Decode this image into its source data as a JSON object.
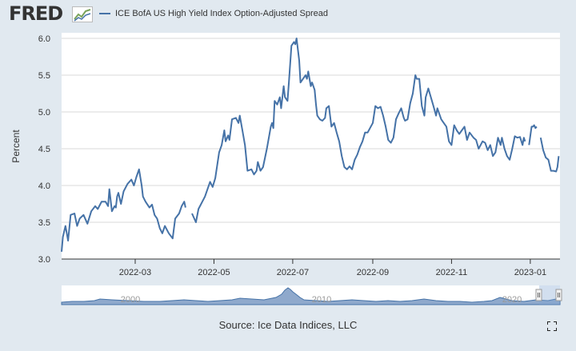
{
  "header": {
    "logo_text": "FRED",
    "logo_icon": "fred-chart-icon",
    "series_name": "ICE BofA US High Yield Index Option-Adjusted Spread"
  },
  "source": "Source: Ice Data Indices, LLC",
  "colors": {
    "background": "#e1e9f0",
    "line": "#4572a7",
    "grid": "#d8d8d8",
    "navigator_fill": "#8fa9cc"
  },
  "navigator": {
    "labels": [
      "2000",
      "2010",
      "2020"
    ]
  },
  "fullscreen_icon": "fullscreen-icon",
  "chart_data": {
    "type": "line",
    "title": "",
    "xlabel": "",
    "ylabel": "Percent",
    "ylim": [
      3.0,
      6.0
    ],
    "yticks": [
      "3.0",
      "3.5",
      "4.0",
      "4.5",
      "5.0",
      "5.5",
      "6.0"
    ],
    "xticks": [
      "2022-03",
      "2022-05",
      "2022-07",
      "2022-09",
      "2022-11",
      "2023-01"
    ],
    "grid": "horizontal",
    "legend": "top",
    "series": [
      {
        "name": "ICE BofA US High Yield Index Option-Adjusted Spread",
        "points": [
          [
            "2022-01-03",
            3.1
          ],
          [
            "2022-01-04",
            3.3
          ],
          [
            "2022-01-06",
            3.45
          ],
          [
            "2022-01-07",
            3.35
          ],
          [
            "2022-01-08",
            3.25
          ],
          [
            "2022-01-10",
            3.6
          ],
          [
            "2022-01-13",
            3.62
          ],
          [
            "2022-01-15",
            3.45
          ],
          [
            "2022-01-17",
            3.55
          ],
          [
            "2022-01-20",
            3.6
          ],
          [
            "2022-01-23",
            3.48
          ],
          [
            "2022-01-26",
            3.65
          ],
          [
            "2022-01-29",
            3.72
          ],
          [
            "2022-01-31",
            3.68
          ],
          [
            "2022-02-03",
            3.78
          ],
          [
            "2022-02-06",
            3.78
          ],
          [
            "2022-02-08",
            3.72
          ],
          [
            "2022-02-09",
            3.95
          ],
          [
            "2022-02-11",
            3.65
          ],
          [
            "2022-02-13",
            3.72
          ],
          [
            "2022-02-14",
            3.7
          ],
          [
            "2022-02-15",
            3.85
          ],
          [
            "2022-02-16",
            3.9
          ],
          [
            "2022-02-18",
            3.75
          ],
          [
            "2022-02-20",
            3.92
          ],
          [
            "2022-02-23",
            4.02
          ],
          [
            "2022-02-26",
            4.08
          ],
          [
            "2022-02-28",
            4.0
          ],
          [
            "2022-03-02",
            4.12
          ],
          [
            "2022-03-04",
            4.22
          ],
          [
            "2022-03-06",
            4.0
          ],
          [
            "2022-03-07",
            3.85
          ],
          [
            "2022-03-09",
            3.78
          ],
          [
            "2022-03-12",
            3.7
          ],
          [
            "2022-03-14",
            3.74
          ],
          [
            "2022-03-16",
            3.6
          ],
          [
            "2022-03-18",
            3.55
          ],
          [
            "2022-03-20",
            3.42
          ],
          [
            "2022-03-22",
            3.35
          ],
          [
            "2022-03-24",
            3.45
          ],
          [
            "2022-03-27",
            3.35
          ],
          [
            "2022-03-30",
            3.28
          ],
          [
            "2022-04-01",
            3.55
          ],
          [
            "2022-04-04",
            3.62
          ],
          [
            "2022-04-06",
            3.72
          ],
          [
            "2022-04-08",
            3.78
          ],
          [
            "2022-04-09",
            3.7
          ],
          null,
          [
            "2022-04-14",
            3.62
          ],
          [
            "2022-04-17",
            3.5
          ],
          [
            "2022-04-19",
            3.68
          ],
          [
            "2022-04-22",
            3.78
          ],
          [
            "2022-04-24",
            3.85
          ],
          [
            "2022-04-26",
            3.95
          ],
          [
            "2022-04-28",
            4.05
          ],
          [
            "2022-04-30",
            3.98
          ],
          [
            "2022-05-02",
            4.1
          ],
          [
            "2022-05-05",
            4.45
          ],
          [
            "2022-05-07",
            4.55
          ],
          [
            "2022-05-09",
            4.75
          ],
          [
            "2022-05-10",
            4.6
          ],
          [
            "2022-05-12",
            4.68
          ],
          [
            "2022-05-13",
            4.62
          ],
          [
            "2022-05-15",
            4.9
          ],
          [
            "2022-05-18",
            4.92
          ],
          [
            "2022-05-20",
            4.85
          ],
          [
            "2022-05-21",
            4.95
          ],
          [
            "2022-05-23",
            4.75
          ],
          [
            "2022-05-25",
            4.55
          ],
          [
            "2022-05-27",
            4.2
          ],
          [
            "2022-05-30",
            4.22
          ],
          [
            "2022-06-01",
            4.15
          ],
          [
            "2022-06-03",
            4.2
          ],
          [
            "2022-06-04",
            4.32
          ],
          [
            "2022-06-06",
            4.2
          ],
          [
            "2022-06-08",
            4.25
          ],
          [
            "2022-06-11",
            4.5
          ],
          [
            "2022-06-14",
            4.8
          ],
          [
            "2022-06-15",
            4.85
          ],
          [
            "2022-06-16",
            4.78
          ],
          [
            "2022-06-17",
            5.15
          ],
          [
            "2022-06-19",
            5.1
          ],
          [
            "2022-06-21",
            5.2
          ],
          [
            "2022-06-22",
            5.05
          ],
          [
            "2022-06-24",
            5.35
          ],
          [
            "2022-06-25",
            5.2
          ],
          [
            "2022-06-27",
            5.15
          ],
          [
            "2022-06-28",
            5.4
          ],
          [
            "2022-06-30",
            5.9
          ],
          [
            "2022-07-02",
            5.95
          ],
          [
            "2022-07-03",
            5.92
          ],
          [
            "2022-07-04",
            6.0
          ],
          [
            "2022-07-06",
            5.7
          ],
          [
            "2022-07-07",
            5.4
          ],
          [
            "2022-07-09",
            5.45
          ],
          [
            "2022-07-11",
            5.5
          ],
          [
            "2022-07-12",
            5.45
          ],
          [
            "2022-07-13",
            5.55
          ],
          [
            "2022-07-15",
            5.35
          ],
          [
            "2022-07-16",
            5.4
          ],
          [
            "2022-07-18",
            5.3
          ],
          [
            "2022-07-19",
            5.1
          ],
          [
            "2022-07-20",
            4.95
          ],
          [
            "2022-07-22",
            4.9
          ],
          [
            "2022-07-24",
            4.88
          ],
          [
            "2022-07-26",
            4.92
          ],
          [
            "2022-07-27",
            5.05
          ],
          [
            "2022-07-29",
            5.08
          ],
          [
            "2022-07-31",
            4.8
          ],
          [
            "2022-08-02",
            4.85
          ],
          [
            "2022-08-04",
            4.72
          ],
          [
            "2022-08-06",
            4.6
          ],
          [
            "2022-08-08",
            4.4
          ],
          [
            "2022-08-10",
            4.25
          ],
          [
            "2022-08-12",
            4.22
          ],
          [
            "2022-08-14",
            4.26
          ],
          [
            "2022-08-16",
            4.22
          ],
          [
            "2022-08-18",
            4.35
          ],
          [
            "2022-08-20",
            4.42
          ],
          [
            "2022-08-22",
            4.52
          ],
          [
            "2022-08-24",
            4.6
          ],
          [
            "2022-08-26",
            4.72
          ],
          [
            "2022-08-28",
            4.72
          ],
          [
            "2022-09-01",
            4.85
          ],
          [
            "2022-09-03",
            5.08
          ],
          [
            "2022-09-05",
            5.05
          ],
          [
            "2022-09-07",
            5.07
          ],
          [
            "2022-09-09",
            4.95
          ],
          [
            "2022-09-11",
            4.8
          ],
          [
            "2022-09-13",
            4.62
          ],
          [
            "2022-09-15",
            4.58
          ],
          [
            "2022-09-17",
            4.65
          ],
          [
            "2022-09-19",
            4.9
          ],
          [
            "2022-09-21",
            4.98
          ],
          [
            "2022-09-23",
            5.05
          ],
          [
            "2022-09-25",
            4.92
          ],
          [
            "2022-09-26",
            4.88
          ],
          [
            "2022-09-28",
            4.9
          ],
          [
            "2022-09-30",
            5.12
          ],
          [
            "2022-10-02",
            5.25
          ],
          [
            "2022-10-04",
            5.5
          ],
          [
            "2022-10-05",
            5.45
          ],
          [
            "2022-10-07",
            5.45
          ],
          [
            "2022-10-09",
            5.08
          ],
          [
            "2022-10-11",
            4.95
          ],
          [
            "2022-10-12",
            5.2
          ],
          [
            "2022-10-14",
            5.32
          ],
          [
            "2022-10-16",
            5.2
          ],
          [
            "2022-10-18",
            5.08
          ],
          [
            "2022-10-20",
            4.95
          ],
          [
            "2022-10-21",
            5.05
          ],
          [
            "2022-10-24",
            4.9
          ],
          [
            "2022-10-26",
            4.85
          ],
          [
            "2022-10-28",
            4.8
          ],
          [
            "2022-10-30",
            4.6
          ],
          [
            "2022-11-01",
            4.55
          ],
          [
            "2022-11-03",
            4.82
          ],
          [
            "2022-11-05",
            4.75
          ],
          [
            "2022-11-07",
            4.7
          ],
          [
            "2022-11-09",
            4.75
          ],
          [
            "2022-11-11",
            4.8
          ],
          [
            "2022-11-13",
            4.62
          ],
          [
            "2022-11-15",
            4.72
          ],
          [
            "2022-11-18",
            4.65
          ],
          [
            "2022-11-20",
            4.62
          ],
          [
            "2022-11-22",
            4.5
          ],
          [
            "2022-11-25",
            4.6
          ],
          [
            "2022-11-27",
            4.58
          ],
          [
            "2022-11-29",
            4.48
          ],
          [
            "2022-12-01",
            4.55
          ],
          [
            "2022-12-03",
            4.4
          ],
          [
            "2022-12-05",
            4.45
          ],
          [
            "2022-12-07",
            4.65
          ],
          [
            "2022-12-09",
            4.55
          ],
          [
            "2022-12-10",
            4.65
          ],
          [
            "2022-12-12",
            4.5
          ],
          [
            "2022-12-14",
            4.4
          ],
          [
            "2022-12-16",
            4.35
          ],
          [
            "2022-12-18",
            4.5
          ],
          [
            "2022-12-20",
            4.67
          ],
          [
            "2022-12-22",
            4.65
          ],
          [
            "2022-12-24",
            4.66
          ],
          [
            "2022-12-26",
            4.55
          ],
          [
            "2022-12-27",
            4.65
          ],
          [
            "2022-12-28",
            4.6
          ],
          null,
          [
            "2022-12-31",
            4.55
          ],
          [
            "2023-01-02",
            4.8
          ],
          [
            "2023-01-03",
            4.8
          ],
          [
            "2023-01-04",
            4.82
          ],
          [
            "2023-01-05",
            4.78
          ],
          [
            "2023-01-06",
            4.8
          ],
          null,
          [
            "2023-01-09",
            4.65
          ],
          [
            "2023-01-11",
            4.48
          ],
          [
            "2023-01-13",
            4.38
          ],
          [
            "2023-01-15",
            4.35
          ],
          [
            "2023-01-17",
            4.2
          ],
          [
            "2023-01-19",
            4.2
          ],
          [
            "2023-01-21",
            4.19
          ],
          [
            "2023-01-22",
            4.25
          ],
          [
            "2023-01-23",
            4.4
          ]
        ]
      }
    ]
  }
}
